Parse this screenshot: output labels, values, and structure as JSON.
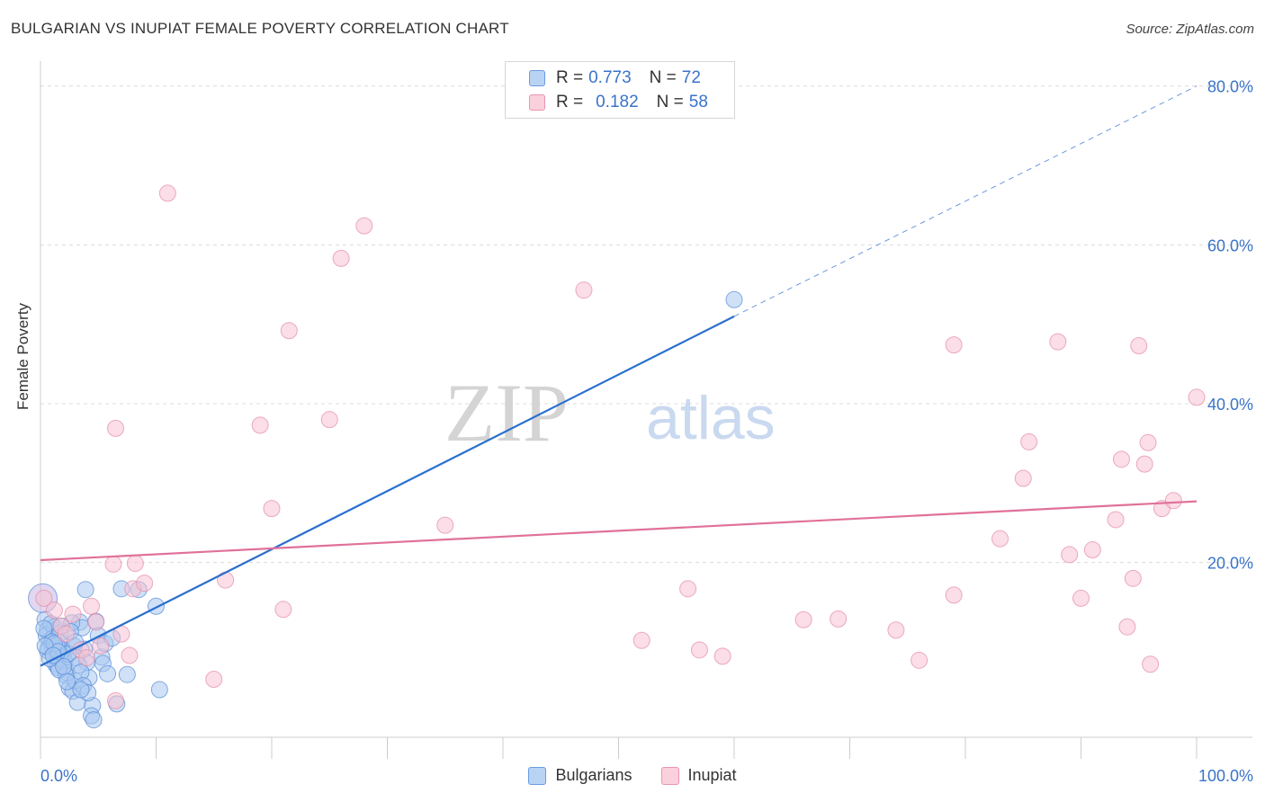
{
  "title": "BULGARIAN VS INUPIAT FEMALE POVERTY CORRELATION CHART",
  "source": "Source: ZipAtlas.com",
  "watermark": {
    "part1": "ZIP",
    "part2": "atlas"
  },
  "legend": {
    "rows": [
      {
        "r_label": "R =",
        "r_value": "0.773",
        "n_label": "N =",
        "n_value": "72"
      },
      {
        "r_label": "R =",
        "r_value": "0.182",
        "n_label": "N =",
        "n_value": "58"
      }
    ]
  },
  "bottom_legend": [
    "Bulgarians",
    "Inupiat"
  ],
  "colors": {
    "blue_fill": "#a9c8f0",
    "blue_stroke": "#5b8fd8",
    "blue_line": "#2a6fcf",
    "pink_fill": "#f8c3d3",
    "pink_stroke": "#e48aa6",
    "pink_line": "#e0719a",
    "tick_label": "#3a73c9"
  },
  "chart_data": {
    "type": "scatter",
    "title": "BULGARIAN VS INUPIAT FEMALE POVERTY CORRELATION CHART",
    "xlabel": "",
    "ylabel": "Female Poverty",
    "xlim": [
      0,
      100
    ],
    "ylim": [
      -2,
      82
    ],
    "x_tick_labels": [
      "0.0%",
      "100.0%"
    ],
    "y_ticks": [
      20,
      40,
      60,
      80
    ],
    "y_tick_labels": [
      "20.0%",
      "40.0%",
      "60.0%",
      "80.0%"
    ],
    "series": [
      {
        "name": "Bulgarians",
        "r": 0.773,
        "n": 72,
        "trend": {
          "x0": 0,
          "y0": 7.0,
          "x1": 60,
          "y1": 51.0,
          "dashed_to_x": 100,
          "dashed_to_y": 80.0
        },
        "points": [
          [
            0.2,
            15.5
          ],
          [
            0.4,
            12.8
          ],
          [
            0.6,
            11.5
          ],
          [
            0.8,
            10.2
          ],
          [
            1.0,
            9.4
          ],
          [
            1.2,
            11.9
          ],
          [
            1.4,
            8.6
          ],
          [
            1.6,
            7.8
          ],
          [
            1.8,
            9.9
          ],
          [
            2.0,
            8.1
          ],
          [
            0.5,
            10.8
          ],
          [
            0.7,
            9.2
          ],
          [
            0.9,
            12.3
          ],
          [
            1.1,
            10.5
          ],
          [
            1.3,
            7.2
          ],
          [
            1.5,
            6.8
          ],
          [
            1.7,
            11.1
          ],
          [
            1.9,
            9.0
          ],
          [
            2.1,
            7.5
          ],
          [
            2.3,
            6.1
          ],
          [
            0.3,
            11.7
          ],
          [
            0.6,
            8.9
          ],
          [
            1.0,
            10.0
          ],
          [
            1.4,
            9.6
          ],
          [
            1.8,
            12.0
          ],
          [
            2.2,
            5.8
          ],
          [
            2.5,
            4.2
          ],
          [
            2.8,
            3.8
          ],
          [
            3.0,
            5.1
          ],
          [
            3.2,
            2.4
          ],
          [
            3.4,
            12.5
          ],
          [
            3.6,
            11.8
          ],
          [
            3.8,
            9.1
          ],
          [
            4.0,
            7.4
          ],
          [
            4.2,
            5.5
          ],
          [
            4.5,
            2.0
          ],
          [
            4.8,
            12.6
          ],
          [
            5.0,
            10.8
          ],
          [
            5.3,
            8.1
          ],
          [
            5.6,
            9.8
          ],
          [
            2.7,
            12.4
          ],
          [
            2.9,
            9.5
          ],
          [
            3.1,
            8.0
          ],
          [
            3.3,
            7.1
          ],
          [
            3.5,
            6.2
          ],
          [
            3.7,
            4.5
          ],
          [
            4.1,
            3.6
          ],
          [
            4.4,
            0.7
          ],
          [
            4.6,
            0.2
          ],
          [
            3.9,
            16.6
          ],
          [
            5.4,
            7.3
          ],
          [
            5.8,
            6.0
          ],
          [
            6.2,
            10.5
          ],
          [
            6.6,
            2.2
          ],
          [
            7.0,
            16.7
          ],
          [
            7.5,
            5.9
          ],
          [
            8.5,
            16.6
          ],
          [
            10.0,
            14.5
          ],
          [
            10.3,
            4.0
          ],
          [
            60.0,
            53.1
          ],
          [
            1.6,
            6.5
          ],
          [
            2.4,
            8.5
          ],
          [
            0.8,
            7.9
          ],
          [
            1.2,
            9.8
          ],
          [
            2.6,
            11.3
          ],
          [
            3.0,
            10.0
          ],
          [
            1.5,
            8.8
          ],
          [
            2.0,
            6.9
          ],
          [
            0.4,
            9.5
          ],
          [
            1.1,
            8.3
          ],
          [
            2.3,
            5.0
          ],
          [
            3.5,
            4.0
          ]
        ]
      },
      {
        "name": "Inupiat",
        "r": 0.182,
        "n": 58,
        "trend": {
          "x0": 0,
          "y0": 20.3,
          "x1": 100,
          "y1": 27.7
        },
        "points": [
          [
            0.3,
            15.5
          ],
          [
            1.2,
            14.0
          ],
          [
            1.8,
            12.0
          ],
          [
            2.2,
            11.0
          ],
          [
            2.8,
            13.5
          ],
          [
            3.5,
            9.0
          ],
          [
            4.0,
            8.0
          ],
          [
            4.4,
            14.5
          ],
          [
            4.8,
            12.5
          ],
          [
            5.2,
            9.5
          ],
          [
            6.3,
            19.8
          ],
          [
            6.5,
            2.6
          ],
          [
            6.5,
            36.9
          ],
          [
            7.0,
            11.0
          ],
          [
            7.7,
            8.3
          ],
          [
            8.0,
            16.7
          ],
          [
            8.2,
            19.9
          ],
          [
            9.0,
            17.4
          ],
          [
            11.0,
            66.5
          ],
          [
            15.0,
            5.3
          ],
          [
            16.0,
            17.8
          ],
          [
            19.0,
            37.3
          ],
          [
            20.0,
            26.8
          ],
          [
            21.0,
            14.1
          ],
          [
            21.5,
            49.2
          ],
          [
            25.0,
            38.0
          ],
          [
            26.0,
            58.3
          ],
          [
            28.0,
            62.4
          ],
          [
            35.0,
            24.7
          ],
          [
            47.0,
            54.3
          ],
          [
            52.0,
            10.2
          ],
          [
            56.0,
            16.7
          ],
          [
            57.0,
            9.0
          ],
          [
            59.0,
            8.2
          ],
          [
            66.0,
            12.8
          ],
          [
            69.0,
            12.9
          ],
          [
            74.0,
            11.5
          ],
          [
            76.0,
            7.7
          ],
          [
            79.0,
            47.4
          ],
          [
            79.0,
            15.9
          ],
          [
            83.0,
            23.0
          ],
          [
            85.0,
            30.6
          ],
          [
            85.5,
            35.2
          ],
          [
            88.0,
            47.8
          ],
          [
            89.0,
            21.0
          ],
          [
            90.0,
            15.5
          ],
          [
            91.0,
            21.6
          ],
          [
            93.0,
            25.4
          ],
          [
            93.5,
            33.0
          ],
          [
            94.0,
            11.9
          ],
          [
            94.5,
            18.0
          ],
          [
            95.0,
            47.3
          ],
          [
            95.5,
            32.4
          ],
          [
            95.8,
            35.1
          ],
          [
            96.0,
            7.2
          ],
          [
            97.0,
            26.8
          ],
          [
            98.0,
            27.8
          ],
          [
            100.0,
            40.8
          ]
        ]
      }
    ]
  }
}
